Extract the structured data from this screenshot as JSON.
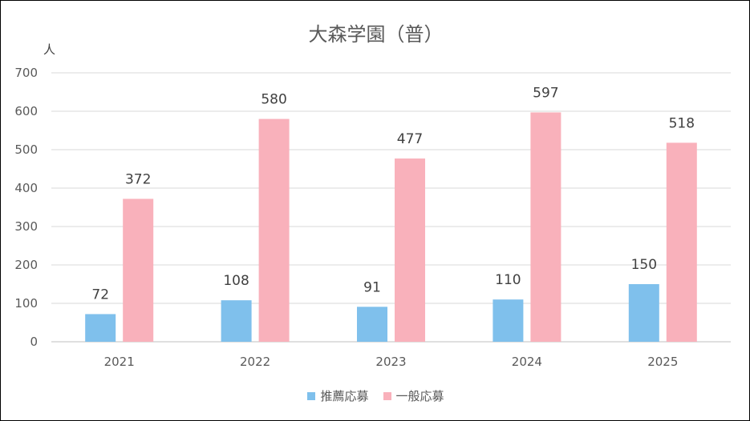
{
  "chart_data": {
    "type": "bar",
    "title": "大森学園（普）",
    "ylabel": "人",
    "xlabel": "",
    "categories": [
      "2021",
      "2022",
      "2023",
      "2024",
      "2025"
    ],
    "series": [
      {
        "name": "推薦応募",
        "values": [
          72,
          108,
          91,
          110,
          150
        ],
        "color": "#7fc0ec"
      },
      {
        "name": "一般応募",
        "values": [
          372,
          580,
          477,
          597,
          518
        ],
        "color": "#f9b1bb"
      }
    ],
    "ylim": [
      0,
      700
    ],
    "yticks": [
      0,
      100,
      200,
      300,
      400,
      500,
      600,
      700
    ],
    "grid": true,
    "legend_position": "bottom",
    "data_labels": true
  }
}
